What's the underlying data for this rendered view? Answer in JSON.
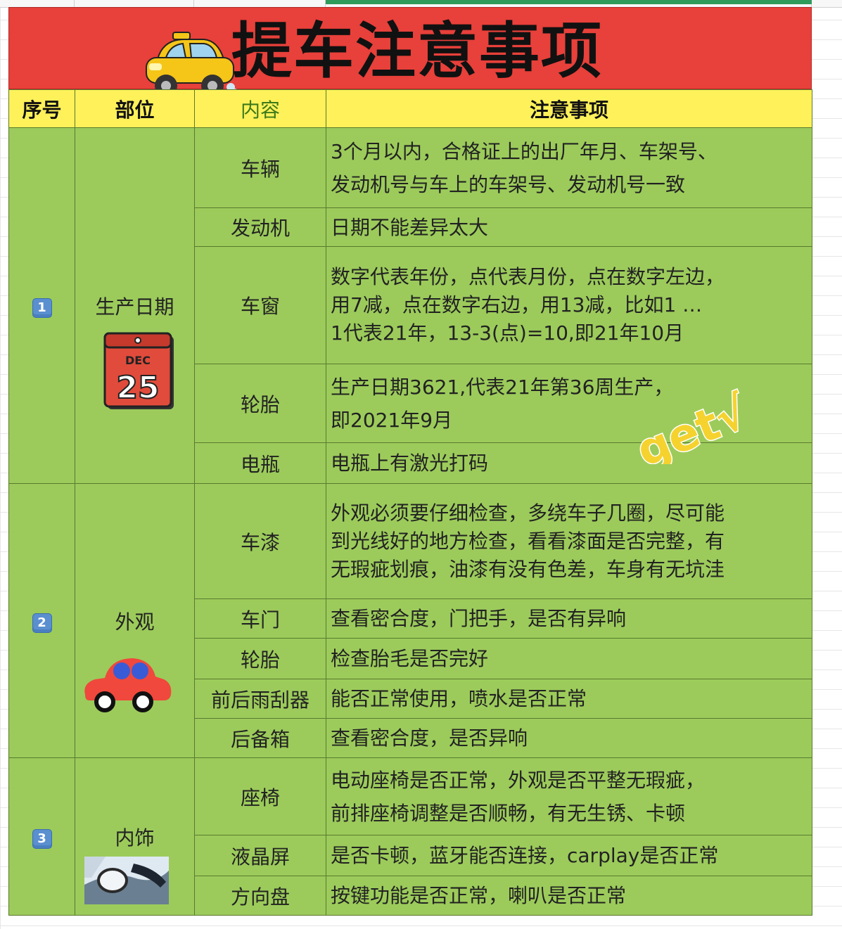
{
  "title": "提车注意事项",
  "headers": {
    "seq": "序号",
    "part": "部位",
    "content": "内容",
    "notes": "注意事项"
  },
  "sections": [
    {
      "badge": "1",
      "part": "生产日期",
      "calendar": {
        "month": "DEC",
        "day": "25"
      },
      "rows": [
        {
          "item": "车辆",
          "lines": [
            "3个月以内，合格证上的出厂年月、车架号、",
            "发动机号与车上的车架号、发动机号一致"
          ]
        },
        {
          "item": "发动机",
          "lines": [
            "日期不能差异太大"
          ]
        },
        {
          "item": "车窗",
          "lines": [
            "数字代表年份，点代表月份，点在数字左边，",
            "用7减，点在数字右边，用13减，比如1 …",
            "1代表21年，13-3(点)=10,即21年10月"
          ]
        },
        {
          "item": "轮胎",
          "lines": [
            "生产日期3621,代表21年第36周生产，",
            "即2021年9月"
          ]
        },
        {
          "item": "电瓶",
          "lines": [
            "电瓶上有激光打码"
          ]
        }
      ]
    },
    {
      "badge": "2",
      "part": "外观",
      "rows": [
        {
          "item": "车漆",
          "lines": [
            "外观必须要仔细检查，多绕车子几圈，尽可能",
            "到光线好的地方检查，看看漆面是否完整，有",
            "无瑕疵划痕，油漆有没有色差，车身有无坑洼"
          ]
        },
        {
          "item": "车门",
          "lines": [
            "查看密合度，门把手，是否有异响"
          ]
        },
        {
          "item": "轮胎",
          "lines": [
            "检查胎毛是否完好"
          ]
        },
        {
          "item": "前后雨刮器",
          "lines": [
            "能否正常使用，喷水是否正常"
          ]
        },
        {
          "item": "后备箱",
          "lines": [
            "查看密合度，是否异响"
          ]
        }
      ]
    },
    {
      "badge": "3",
      "part": "内饰",
      "rows": [
        {
          "item": "座椅",
          "lines": [
            "电动座椅是否正常，外观是否平整无瑕疵，",
            "前排座椅调整是否顺畅，有无生锈、卡顿"
          ]
        },
        {
          "item": "液晶屏",
          "lines": [
            "是否卡顿，蓝牙能否连接，carplay是否正常"
          ]
        },
        {
          "item": "方向盘",
          "lines": [
            "按键功能是否正常，喇叭是否正常"
          ]
        }
      ]
    }
  ],
  "sticker": "get√",
  "colors": {
    "title_bg": "#e8403a",
    "header_bg": "#fef15a",
    "body_bg": "#9ccb5b",
    "border": "#5a7a2e"
  }
}
